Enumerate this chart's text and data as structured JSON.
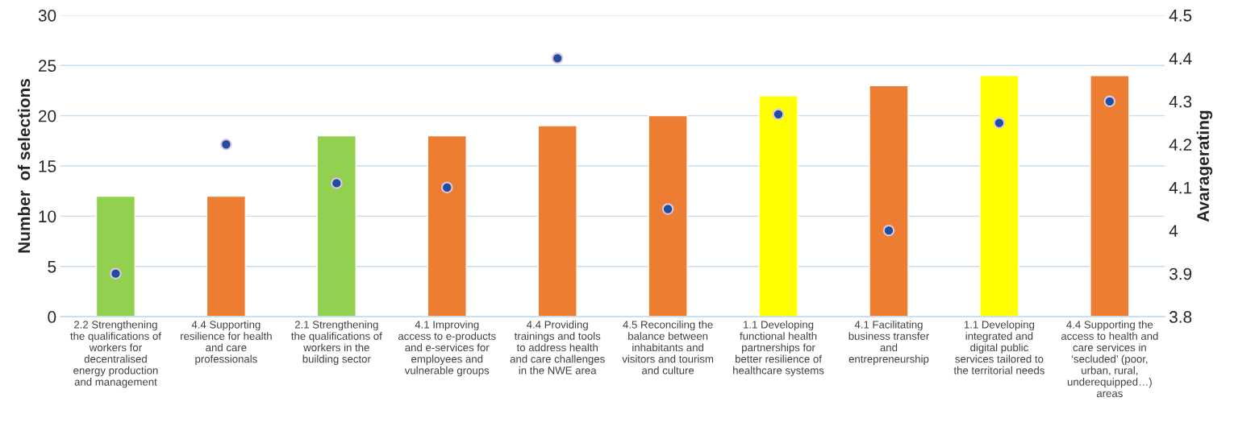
{
  "chart_data": {
    "type": "bar",
    "categories": [
      "2.2 Strengthening\nthe qualifications of\nworkers for\ndecentralised\nenergy production\nand management",
      "4.4 Supporting\nresilience for health\nand care\nprofessionals",
      "2.1 Strengthening\nthe qualifications of\nworkers in the\nbuilding sector",
      "4.1 Improving\naccess to e-products\nand e-services for\nemployees and\nvulnerable groups",
      "4.4 Providing\ntrainings and tools\nto address health\nand care challenges\nin the NWE area",
      "4.5 Reconciling the\nbalance between\ninhabitants and\nvisitors and tourism\nand culture",
      "1.1 Developing\nfunctional health\npartnerships for\nbetter resilience of\nhealthcare systems",
      "4.1 Facilitating\nbusiness transfer\nand\nentrepreneurship",
      "1.1 Developing\nintegrated and\ndigital public\nservices tailored to\nthe territorial needs",
      "4.4 Supporting the\naccess to health and\ncare services in\n‘secluded’ (poor,\nurban, rural,\nunderequipped…)\nareas"
    ],
    "series": [
      {
        "colors": [
          "#92d050",
          "#ed7d31",
          "#92d050",
          "#ed7d31",
          "#ed7d31",
          "#ed7d31",
          "#ffff00",
          "#ed7d31",
          "#ffff00",
          "#ed7d31"
        ],
        "values": [
          12,
          12,
          18,
          18,
          19,
          20,
          22,
          23,
          24,
          24
        ]
      },
      {
        "type": "scatter",
        "axis": "y2",
        "color": "#1f4e9c",
        "marker": "circle",
        "values": [
          3.9,
          4.2,
          4.11,
          4.1,
          4.4,
          4.05,
          4.27,
          4.0,
          4.25,
          4.3
        ]
      }
    ],
    "ylabel": "Number  of selections",
    "y2label": "Avaragerating",
    "ylim": [
      0,
      30
    ],
    "yticks": [
      0,
      5,
      10,
      15,
      20,
      25,
      30
    ],
    "y2lim": [
      3.8,
      4.5
    ],
    "y2ticks": [
      3.8,
      3.9,
      4,
      4.1,
      4.2,
      4.3,
      4.4,
      4.5
    ],
    "grid": "y",
    "legend": false
  }
}
